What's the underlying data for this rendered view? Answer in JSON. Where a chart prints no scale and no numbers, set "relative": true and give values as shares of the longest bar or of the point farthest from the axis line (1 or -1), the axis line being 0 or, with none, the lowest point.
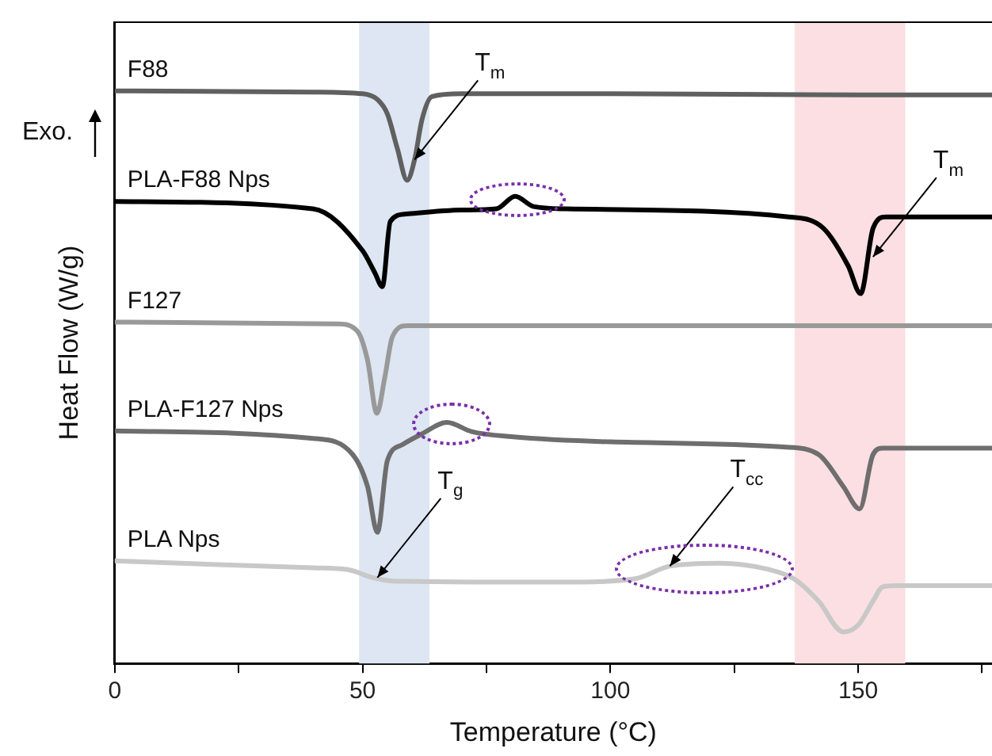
{
  "chart_data": {
    "type": "line",
    "relative": true,
    "xlabel": "Temperature (°C)",
    "ylabel": "Heat Flow (W/g)",
    "xlim": [
      0,
      177
    ],
    "xticks": [
      0,
      {
        "value": 25,
        "label": null
      },
      50,
      {
        "value": 75,
        "label": null
      },
      100,
      {
        "value": 125,
        "label": null
      },
      150,
      {
        "value": 175,
        "label": null
      }
    ],
    "grid": false,
    "legend": false,
    "marker": "none",
    "line_style": "solid",
    "bands": [
      {
        "axis": "x",
        "from": 49.3,
        "to": 63.5,
        "color": "#dde6f2"
      },
      {
        "axis": "x",
        "from": 137.2,
        "to": 159.5,
        "color": "#fbdfe2"
      }
    ],
    "annotations": [
      "Exo.",
      {
        "text": "T$_{m}$",
        "x": 60.5,
        "y": 0.88
      },
      {
        "text": "T$_{m}$",
        "x": 153,
        "y": 0.71
      },
      {
        "text": "T$_{g}$",
        "x": 53,
        "y": 0.15
      },
      {
        "text": "T$_{cc}$",
        "x": 112,
        "y": 0.17
      }
    ],
    "series": [
      {
        "name": "F88",
        "color": "#606060",
        "x": [
          0,
          40,
          50,
          53,
          55,
          57,
          59,
          60.5,
          62,
          64,
          70,
          100,
          150,
          177
        ],
        "values": [
          1.0,
          0.998,
          0.995,
          0.985,
          0.96,
          0.9,
          0.844,
          0.88,
          0.95,
          0.99,
          0.995,
          0.995,
          0.993,
          0.993
        ]
      },
      {
        "name": "PLA-F88 Nps",
        "color": "#000000",
        "x": [
          0,
          40,
          50,
          52.5,
          54,
          55.6,
          58.8,
          70,
          77,
          80.8,
          84.5,
          91,
          136,
          143,
          148,
          150.5,
          153,
          155.6,
          177
        ],
        "values": [
          0.807,
          0.794,
          0.721,
          0.682,
          0.658,
          0.772,
          0.785,
          0.792,
          0.794,
          0.816,
          0.798,
          0.794,
          0.78,
          0.76,
          0.694,
          0.646,
          0.76,
          0.78,
          0.78
        ]
      },
      {
        "name": "F127",
        "color": "#999999",
        "x": [
          0,
          45,
          49,
          51,
          52.9,
          54.5,
          56,
          59,
          177
        ],
        "values": [
          0.596,
          0.593,
          0.58,
          0.53,
          0.437,
          0.5,
          0.57,
          0.59,
          0.59
        ]
      },
      {
        "name": "PLA-F127 Nps",
        "color": "#6e6e6e",
        "x": [
          0,
          40,
          48,
          51,
          53,
          55,
          58,
          62,
          67,
          72,
          80,
          100,
          135,
          142,
          147,
          150.3,
          153,
          155,
          177
        ],
        "values": [
          0.406,
          0.393,
          0.365,
          0.309,
          0.229,
          0.354,
          0.382,
          0.401,
          0.421,
          0.405,
          0.396,
          0.387,
          0.378,
          0.365,
          0.309,
          0.27,
          0.365,
          0.376,
          0.376
        ]
      },
      {
        "name": "PLA Nps",
        "color": "#c8c8c8",
        "x": [
          0,
          40,
          47,
          52,
          56,
          90,
          105,
          112,
          122,
          132,
          137,
          142,
          147,
          150,
          153,
          155,
          158,
          177
        ],
        "values": [
          0.179,
          0.167,
          0.164,
          0.15,
          0.144,
          0.142,
          0.148,
          0.17,
          0.175,
          0.164,
          0.148,
          0.109,
          0.055,
          0.067,
          0.109,
          0.134,
          0.136,
          0.136
        ]
      }
    ]
  }
}
